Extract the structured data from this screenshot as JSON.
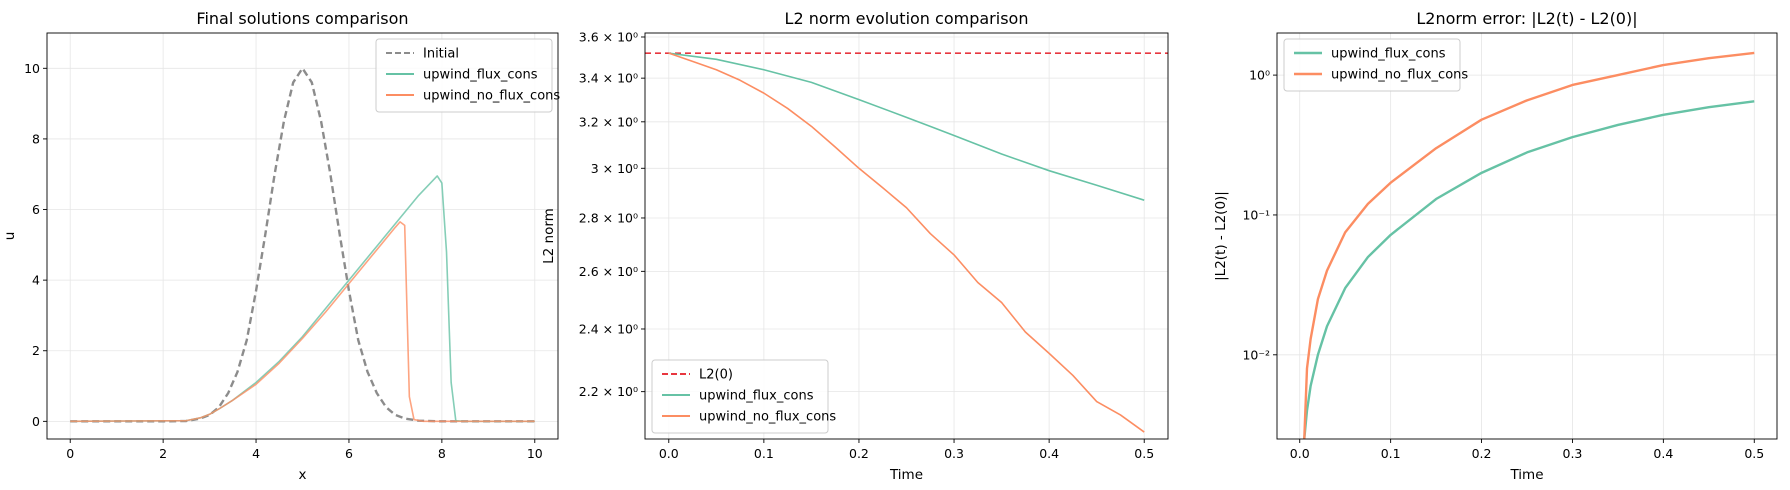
{
  "chart_data": [
    {
      "type": "line",
      "title": "Final solutions comparison",
      "xlabel": "x",
      "ylabel": "u",
      "xlim": [
        -0.5,
        10.5
      ],
      "ylim": [
        -0.5,
        11
      ],
      "xticks": [
        0,
        2,
        4,
        6,
        8,
        10
      ],
      "yticks": [
        0,
        2,
        4,
        6,
        8,
        10
      ],
      "xtick_labels": [
        "0",
        "2",
        "4",
        "6",
        "8",
        "10"
      ],
      "ytick_labels": [
        "0",
        "2",
        "4",
        "6",
        "8",
        "10"
      ],
      "grid": true,
      "legend": "top-right",
      "series": [
        {
          "name": "Initial",
          "color": "#8c8c8c",
          "dash": true,
          "x": [
            0,
            2,
            2.5,
            2.8,
            3.0,
            3.2,
            3.4,
            3.6,
            3.8,
            4.0,
            4.2,
            4.4,
            4.6,
            4.8,
            5.0,
            5.2,
            5.4,
            5.6,
            5.8,
            6.0,
            6.2,
            6.4,
            6.6,
            6.8,
            7.0,
            7.2,
            7.5,
            8,
            10
          ],
          "y": [
            0,
            0,
            0.01,
            0.08,
            0.18,
            0.4,
            0.8,
            1.4,
            2.3,
            3.7,
            5.3,
            7.0,
            8.5,
            9.6,
            10.0,
            9.6,
            8.5,
            7.0,
            5.3,
            3.7,
            2.3,
            1.4,
            0.8,
            0.4,
            0.18,
            0.08,
            0.02,
            0,
            0
          ]
        },
        {
          "name": "upwind_flux_cons",
          "color": "#66c2a5",
          "dash": false,
          "x": [
            0,
            2.5,
            2.8,
            3.0,
            3.2,
            3.5,
            4.0,
            4.5,
            5.0,
            5.5,
            6.0,
            6.5,
            7.0,
            7.5,
            7.9,
            8.0,
            8.1,
            8.2,
            8.3,
            8.5,
            10
          ],
          "y": [
            0,
            0.02,
            0.1,
            0.2,
            0.35,
            0.6,
            1.1,
            1.7,
            2.4,
            3.2,
            4.0,
            4.8,
            5.6,
            6.4,
            6.95,
            6.75,
            4.8,
            1.1,
            0.02,
            0,
            0
          ]
        },
        {
          "name": "upwind_no_flux_cons",
          "color": "#fc8d62",
          "dash": false,
          "x": [
            0,
            2.5,
            2.8,
            3.0,
            3.2,
            3.5,
            4.0,
            4.5,
            5.0,
            5.5,
            6.0,
            6.5,
            7.0,
            7.1,
            7.2,
            7.3,
            7.4,
            7.6,
            10
          ],
          "y": [
            0,
            0.02,
            0.1,
            0.2,
            0.35,
            0.6,
            1.05,
            1.65,
            2.35,
            3.1,
            3.9,
            4.7,
            5.5,
            5.65,
            5.55,
            0.7,
            0.05,
            0,
            0
          ]
        }
      ]
    },
    {
      "type": "line",
      "title": "L2 norm evolution comparison",
      "xlabel": "Time",
      "ylabel": "L2 norm",
      "yscale": "log",
      "xlim": [
        -0.025,
        0.525
      ],
      "ylim": [
        2.06,
        3.62
      ],
      "xticks": [
        0,
        0.1,
        0.2,
        0.3,
        0.4,
        0.5
      ],
      "xtick_labels": [
        "0.0",
        "0.1",
        "0.2",
        "0.3",
        "0.4",
        "0.5"
      ],
      "yticks": [
        2.2,
        2.4,
        2.6,
        2.8,
        3.0,
        3.2,
        3.4,
        3.6
      ],
      "ytick_labels": [
        "2.2 × 10⁰",
        "2.4 × 10⁰",
        "2.6 × 10⁰",
        "2.8 × 10⁰",
        "3 × 10⁰",
        "3.2 × 10⁰",
        "3.4 × 10⁰",
        "3.6 × 10⁰"
      ],
      "grid": true,
      "legend": "bottom-left",
      "series": [
        {
          "name": "L2(0)",
          "color": "#e8363f",
          "dash": true,
          "x": [
            -0.025,
            0.525
          ],
          "y": [
            3.52,
            3.52
          ]
        },
        {
          "name": "upwind_flux_cons",
          "color": "#66c2a5",
          "dash": false,
          "x": [
            0,
            0.05,
            0.1,
            0.15,
            0.2,
            0.25,
            0.3,
            0.35,
            0.4,
            0.45,
            0.5
          ],
          "y": [
            3.52,
            3.49,
            3.44,
            3.38,
            3.3,
            3.22,
            3.14,
            3.06,
            2.99,
            2.93,
            2.87
          ]
        },
        {
          "name": "upwind_no_flux_cons",
          "color": "#fc8d62",
          "dash": false,
          "x": [
            0,
            0.025,
            0.05,
            0.075,
            0.1,
            0.125,
            0.15,
            0.175,
            0.2,
            0.225,
            0.25,
            0.275,
            0.3,
            0.325,
            0.35,
            0.375,
            0.4,
            0.425,
            0.45,
            0.475,
            0.5
          ],
          "y": [
            3.52,
            3.48,
            3.44,
            3.39,
            3.33,
            3.26,
            3.18,
            3.09,
            3.0,
            2.92,
            2.84,
            2.74,
            2.66,
            2.56,
            2.49,
            2.39,
            2.32,
            2.25,
            2.17,
            2.13,
            2.08
          ]
        }
      ]
    },
    {
      "type": "line",
      "title": "L2norm error: |L2(t) - L2(0)|",
      "xlabel": "Time",
      "ylabel": "|L2(t) - L2(0)|",
      "yscale": "log",
      "xlim": [
        -0.025,
        0.525
      ],
      "ylim": [
        0.0025,
        2.0
      ],
      "xticks": [
        0,
        0.1,
        0.2,
        0.3,
        0.4,
        0.5
      ],
      "xtick_labels": [
        "0.0",
        "0.1",
        "0.2",
        "0.3",
        "0.4",
        "0.5"
      ],
      "yticks": [
        0.01,
        0.1,
        1
      ],
      "ytick_labels": [
        "10⁻²",
        "10⁻¹",
        "10⁰"
      ],
      "grid": true,
      "legend": "top-left",
      "series": [
        {
          "name": "upwind_flux_cons",
          "color": "#66c2a5",
          "dash": false,
          "x": [
            0.005,
            0.008,
            0.012,
            0.02,
            0.03,
            0.05,
            0.075,
            0.1,
            0.15,
            0.2,
            0.25,
            0.3,
            0.35,
            0.4,
            0.45,
            0.5
          ],
          "y": [
            0.0025,
            0.004,
            0.006,
            0.01,
            0.016,
            0.03,
            0.05,
            0.072,
            0.13,
            0.2,
            0.28,
            0.36,
            0.44,
            0.52,
            0.59,
            0.65
          ]
        },
        {
          "name": "upwind_no_flux_cons",
          "color": "#fc8d62",
          "dash": false,
          "x": [
            0.005,
            0.008,
            0.012,
            0.02,
            0.03,
            0.05,
            0.075,
            0.1,
            0.15,
            0.2,
            0.25,
            0.3,
            0.35,
            0.4,
            0.45,
            0.5
          ],
          "y": [
            0.0025,
            0.008,
            0.013,
            0.025,
            0.04,
            0.075,
            0.12,
            0.17,
            0.3,
            0.48,
            0.66,
            0.85,
            1.0,
            1.18,
            1.32,
            1.44
          ]
        }
      ]
    }
  ]
}
